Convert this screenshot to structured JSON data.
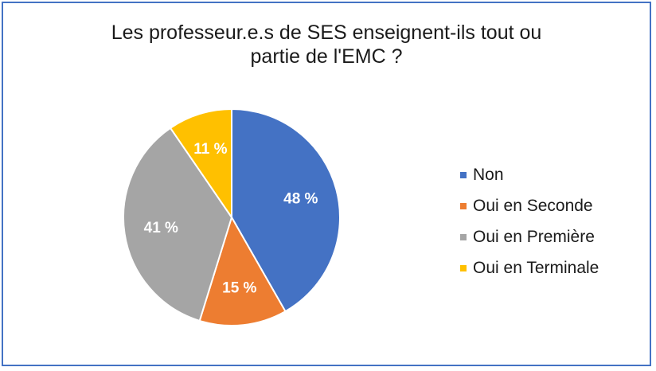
{
  "chart_data": {
    "type": "pie",
    "title_lines": [
      "Les professeur.e.s de SES enseignent-ils tout ou",
      "partie de l'EMC ?"
    ],
    "categories": [
      "Non",
      "Oui en Seconde",
      "Oui en Première",
      "Oui en Terminale"
    ],
    "values": [
      48,
      15,
      41,
      11
    ],
    "labels": [
      "48 %",
      "15 %",
      "41 %",
      "11 %"
    ],
    "colors": [
      "#4472C4",
      "#ED7D31",
      "#A5A5A5",
      "#FFC000"
    ],
    "legend_position": "right"
  }
}
